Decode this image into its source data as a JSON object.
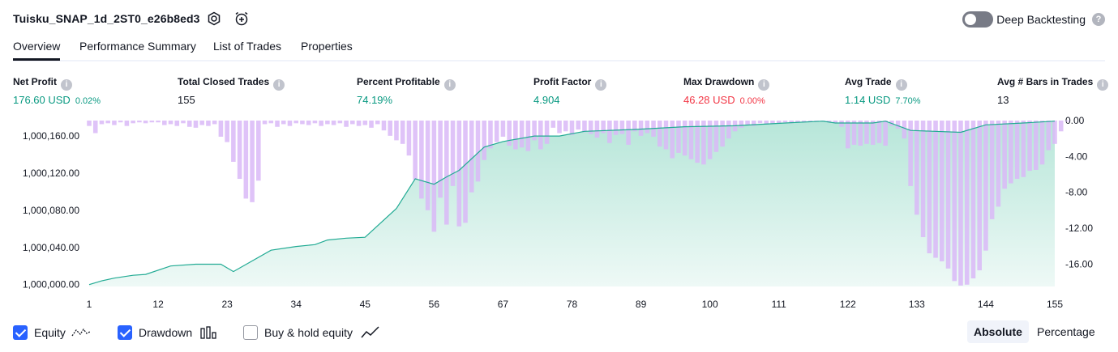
{
  "header": {
    "title": "Tuisku_SNAP_1d_2ST0_e26b8ed3",
    "settings_icon": "gear-icon",
    "alert_icon": "alarm-clock-plus-icon",
    "deep_backtesting_label": "Deep Backtesting",
    "deep_backtesting_enabled": false,
    "help_glyph": "?"
  },
  "tabs": [
    {
      "label": "Overview",
      "active": true
    },
    {
      "label": "Performance Summary",
      "active": false
    },
    {
      "label": "List of Trades",
      "active": false
    },
    {
      "label": "Properties",
      "active": false
    }
  ],
  "metrics": [
    {
      "label": "Net Profit",
      "value": "176.60 USD",
      "sub": "0.02%",
      "color": "green"
    },
    {
      "label": "Total Closed Trades",
      "value": "155",
      "sub": "",
      "color": "dark"
    },
    {
      "label": "Percent Profitable",
      "value": "74.19%",
      "sub": "",
      "color": "green"
    },
    {
      "label": "Profit Factor",
      "value": "4.904",
      "sub": "",
      "color": "green"
    },
    {
      "label": "Max Drawdown",
      "value": "46.28 USD",
      "sub": "0.00%",
      "color": "red"
    },
    {
      "label": "Avg Trade",
      "value": "1.14 USD",
      "sub": "7.70%",
      "color": "green"
    },
    {
      "label": "Avg # Bars in Trades",
      "value": "13",
      "sub": "",
      "color": "dark"
    }
  ],
  "info_glyph": "i",
  "legend": {
    "equity_label": "Equity",
    "equity_checked": true,
    "drawdown_label": "Drawdown",
    "drawdown_checked": true,
    "buyhold_label": "Buy & hold equity",
    "buyhold_checked": false,
    "absolute_label": "Absolute",
    "percentage_label": "Percentage",
    "selected_mode": "Absolute"
  },
  "colors": {
    "equity_line": "#22ab94",
    "equity_fill_top": "#b7e6d9",
    "equity_fill_bottom": "#eef9f6",
    "drawdown_bar": "#d9b8f7",
    "accent": "#2962ff",
    "green": "#089981",
    "red": "#f23645"
  },
  "chart_data": {
    "type": "area",
    "x_ticks": [
      "1",
      "12",
      "23",
      "34",
      "45",
      "56",
      "67",
      "78",
      "89",
      "100",
      "111",
      "122",
      "133",
      "144",
      "155"
    ],
    "y_left_ticks": [
      "1,000,000.00",
      "1,000,040.00",
      "1,000,080.00",
      "1,000,120.00",
      "1,000,160.00"
    ],
    "y_right_ticks": [
      "0.00",
      "-4.00",
      "-8.00",
      "-12.00",
      "-16.00"
    ],
    "y_left_range": [
      999998,
      1000176.6
    ],
    "y_right_range": [
      -18.5,
      0
    ],
    "series": [
      {
        "name": "Equity",
        "x": [
          1,
          3,
          5,
          8,
          10,
          14,
          18,
          22,
          24,
          30,
          34,
          37,
          39,
          42,
          45,
          50,
          53,
          56,
          58,
          60,
          64,
          67,
          72,
          76,
          80,
          88,
          96,
          104,
          112,
          118,
          120,
          126,
          128,
          132,
          140,
          144,
          150,
          155
        ],
        "values": [
          1000000,
          1000004,
          1000007,
          1000010,
          1000011,
          1000020,
          1000022,
          1000022,
          1000014,
          1000037,
          1000041,
          1000043,
          1000048,
          1000050,
          1000051,
          1000082,
          1000114,
          1000108,
          1000116,
          1000123,
          1000148,
          1000154,
          1000160,
          1000160,
          1000165,
          1000167,
          1000170,
          1000171,
          1000174,
          1000176,
          1000174,
          1000174,
          1000176,
          1000166,
          1000164,
          1000172,
          1000174,
          1000176
        ]
      },
      {
        "name": "Drawdown",
        "values": [
          -0.6,
          -1.4,
          -0.4,
          -0.3,
          -0.5,
          -0.2,
          -0.6,
          -0.3,
          -0.2,
          -0.3,
          -0.2,
          -0.2,
          -0.5,
          -0.4,
          -0.6,
          -0.3,
          -0.7,
          -0.8,
          -0.5,
          -0.6,
          -0.4,
          -1.8,
          -2.4,
          -4.6,
          -6.5,
          -8.7,
          -9.1,
          -6.7,
          -0.4,
          -0.3,
          -0.7,
          -0.4,
          -0.6,
          -0.3,
          -0.4,
          -0.5,
          -0.3,
          -0.6,
          -0.4,
          -0.5,
          -0.3,
          -0.7,
          -0.4,
          -0.6,
          -0.5,
          -0.8,
          -0.4,
          -1.1,
          -1.7,
          -2.2,
          -2.6,
          -3.9,
          -6.6,
          -8.7,
          -10.0,
          -12.4,
          -8.6,
          -11.6,
          -7.3,
          -11.8,
          -11.4,
          -8.0,
          -6.8,
          -4.4,
          -3.1,
          -2.4,
          -1.8,
          -2.8,
          -3.2,
          -3.0,
          -3.4,
          -2.2,
          -3.2,
          -2.6,
          -0.8,
          -1.4,
          -1.2,
          -1.6,
          -1.0,
          -1.3,
          -1.5,
          -1.9,
          -1.4,
          -2.5,
          -1.6,
          -1.5,
          -2.7,
          -1.2,
          -1.7,
          -1.4,
          -1.8,
          -2.9,
          -3.2,
          -4.2,
          -3.6,
          -3.9,
          -4.3,
          -4.7,
          -4.9,
          -4.3,
          -3.5,
          -2.9,
          -2.0,
          -1.2,
          -0.8,
          -0.5,
          -0.6,
          -0.3,
          -0.4,
          -0.4,
          -0.3,
          -0.2,
          -0.3,
          -0.2,
          -0.2,
          -0.1,
          -0.1,
          -0.1,
          -0.2,
          -0.3,
          -0.7,
          -3.1,
          -2.7,
          -2.8,
          -2.6,
          -2.7,
          -2.5,
          -2.8,
          -0.6,
          -0.9,
          -2.0,
          -7.3,
          -10.5,
          -13.0,
          -14.8,
          -15.3,
          -15.7,
          -16.5,
          -17.9,
          -18.4,
          -18.3,
          -17.6,
          -16.7,
          -14.5,
          -11.0,
          -9.6,
          -7.6,
          -7.0,
          -6.5,
          -6.3,
          -5.6,
          -5.5,
          -4.9,
          -3.3,
          -2.6,
          -1.2,
          -0.1
        ]
      }
    ]
  }
}
